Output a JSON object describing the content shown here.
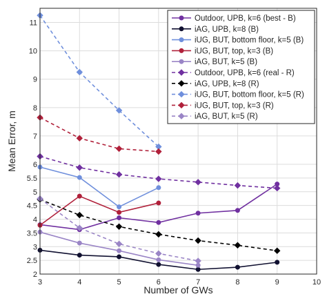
{
  "chart_data": {
    "type": "line",
    "xlabel": "Number of GWs",
    "ylabel": "Mean Error, m",
    "xlim": [
      3,
      10
    ],
    "ylim": [
      2,
      11.5
    ],
    "x_ticks": [
      3,
      4,
      5,
      6,
      7,
      8,
      9,
      10
    ],
    "y_ticks": [
      2,
      2.5,
      3,
      3.5,
      4,
      4.5,
      5,
      5.5,
      6,
      7,
      8,
      9,
      10,
      11
    ],
    "grid": true,
    "legend_position": "top-right",
    "series": [
      {
        "name": "Outdoor, UPB, k=6 (best - B)",
        "color": "#7030a0",
        "dash": "solid",
        "marker": "circle",
        "points": [
          [
            3,
            3.8
          ],
          [
            4,
            3.62
          ],
          [
            5,
            4.05
          ],
          [
            6,
            3.88
          ],
          [
            7,
            4.22
          ],
          [
            8,
            4.32
          ],
          [
            9,
            5.28
          ]
        ]
      },
      {
        "name": "iAG, UPB, k=8 (B)",
        "color": "#101030",
        "dash": "solid",
        "marker": "circle",
        "points": [
          [
            3,
            2.87
          ],
          [
            4,
            2.69
          ],
          [
            5,
            2.63
          ],
          [
            6,
            2.35
          ],
          [
            7,
            2.17
          ],
          [
            8,
            2.25
          ],
          [
            9,
            2.43
          ]
        ]
      },
      {
        "name": "iUG, BUT, bottom floor, k=5 (B)",
        "color": "#6f8fdc",
        "dash": "solid",
        "marker": "circle",
        "points": [
          [
            3,
            5.9
          ],
          [
            4,
            5.52
          ],
          [
            5,
            4.45
          ],
          [
            6,
            5.15
          ]
        ]
      },
      {
        "name": "iUG, BUT, top, k=3 (B)",
        "color": "#b0203a",
        "dash": "solid",
        "marker": "circle",
        "points": [
          [
            3,
            3.78
          ],
          [
            4,
            4.84
          ],
          [
            5,
            4.25
          ],
          [
            6,
            4.59
          ]
        ]
      },
      {
        "name": "iAG, BUT, k=5 (B)",
        "color": "#9a85c6",
        "dash": "solid",
        "marker": "circle",
        "points": [
          [
            3,
            3.53
          ],
          [
            4,
            3.13
          ],
          [
            5,
            2.85
          ],
          [
            6,
            2.52
          ],
          [
            7,
            2.32
          ]
        ]
      },
      {
        "name": "Outdoor, UPB, k=6 (real - R)",
        "color": "#7030a0",
        "dash": "dashed",
        "marker": "diamond",
        "points": [
          [
            3,
            6.28
          ],
          [
            4,
            5.88
          ],
          [
            5,
            5.63
          ],
          [
            6,
            5.47
          ],
          [
            7,
            5.35
          ],
          [
            8,
            5.23
          ],
          [
            9,
            5.13
          ]
        ]
      },
      {
        "name": "iAG, UPB, k=8 (R)",
        "color": "#000000",
        "dash": "dashed",
        "marker": "diamond",
        "points": [
          [
            3,
            4.72
          ],
          [
            4,
            4.15
          ],
          [
            5,
            3.73
          ],
          [
            6,
            3.45
          ],
          [
            7,
            3.22
          ],
          [
            8,
            3.05
          ],
          [
            9,
            2.85
          ]
        ]
      },
      {
        "name": "iUG, BUT, bottom floor, k=5 (R)",
        "color": "#6f8fdc",
        "dash": "dashed",
        "marker": "diamond",
        "points": [
          [
            3,
            11.25
          ],
          [
            4,
            9.25
          ],
          [
            5,
            7.9
          ],
          [
            6,
            6.62
          ]
        ]
      },
      {
        "name": "iUG, BUT, top, k=3 (R)",
        "color": "#b0203a",
        "dash": "dashed",
        "marker": "diamond",
        "points": [
          [
            3,
            7.65
          ],
          [
            4,
            6.92
          ],
          [
            5,
            6.55
          ],
          [
            6,
            6.45
          ]
        ]
      },
      {
        "name": "iAG, BUT, k=5 (R)",
        "color": "#9a85c6",
        "dash": "dashed",
        "marker": "diamond",
        "points": [
          [
            3,
            4.75
          ],
          [
            4,
            3.68
          ],
          [
            5,
            3.1
          ],
          [
            6,
            2.75
          ],
          [
            7,
            2.48
          ]
        ]
      }
    ]
  }
}
